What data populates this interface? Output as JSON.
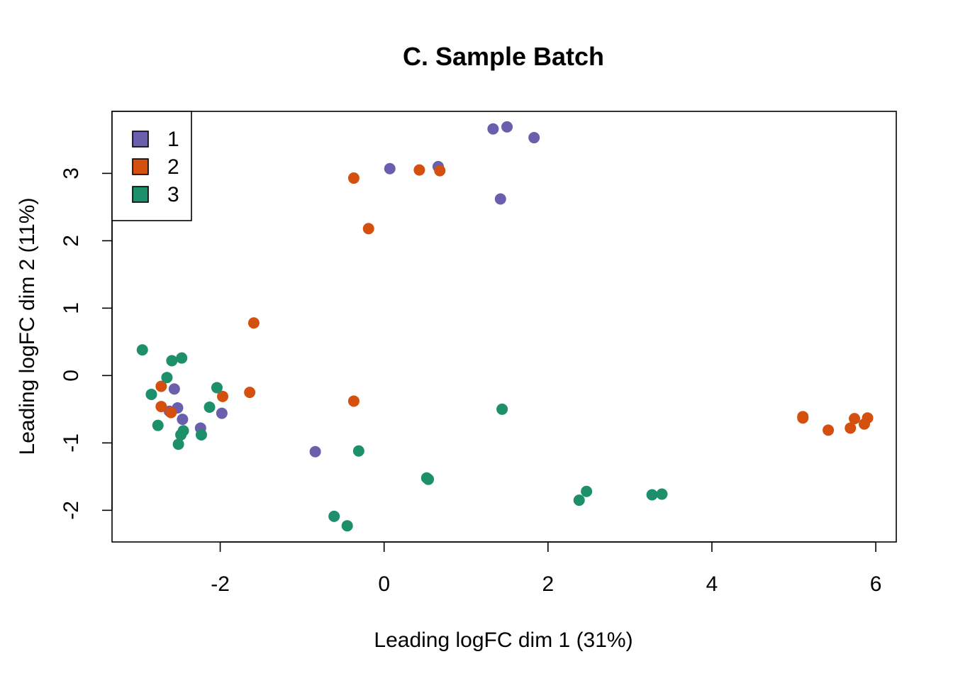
{
  "chart_data": {
    "type": "scatter",
    "title": "C. Sample Batch",
    "xlabel": "Leading logFC dim 1 (31%)",
    "ylabel": "Leading logFC dim 2 (11%)",
    "xlim": [
      -3.32,
      6.25
    ],
    "ylim": [
      -2.47,
      3.92
    ],
    "xticks": [
      "-2",
      "0",
      "2",
      "4",
      "6"
    ],
    "yticks": [
      "-2",
      "-1",
      "0",
      "1",
      "2",
      "3"
    ],
    "grid": false,
    "legend_position": "top-left",
    "series": [
      {
        "name": "1",
        "color": "#6a5fad",
        "points": [
          [
            1.33,
            3.66
          ],
          [
            1.5,
            3.69
          ],
          [
            1.83,
            3.53
          ],
          [
            0.07,
            3.07
          ],
          [
            0.66,
            3.1
          ],
          [
            1.42,
            2.62
          ],
          [
            -2.56,
            -0.2
          ],
          [
            -2.52,
            -0.48
          ],
          [
            -2.46,
            -0.65
          ],
          [
            -2.24,
            -0.78
          ],
          [
            -1.98,
            -0.56
          ],
          [
            -0.84,
            -1.13
          ],
          [
            -2.62,
            -0.53
          ]
        ]
      },
      {
        "name": "2",
        "color": "#d4500f",
        "points": [
          [
            -0.37,
            2.93
          ],
          [
            0.43,
            3.05
          ],
          [
            0.68,
            3.04
          ],
          [
            -0.19,
            2.18
          ],
          [
            -1.59,
            0.78
          ],
          [
            -1.64,
            -0.25
          ],
          [
            -1.97,
            -0.31
          ],
          [
            -0.37,
            -0.38
          ],
          [
            -2.72,
            -0.16
          ],
          [
            -2.72,
            -0.46
          ],
          [
            -2.6,
            -0.55
          ],
          [
            5.11,
            -0.61
          ],
          [
            5.11,
            -0.63
          ],
          [
            5.42,
            -0.81
          ],
          [
            5.69,
            -0.78
          ],
          [
            5.74,
            -0.64
          ],
          [
            5.86,
            -0.72
          ],
          [
            5.9,
            -0.63
          ]
        ]
      },
      {
        "name": "3",
        "color": "#1d8f6a",
        "points": [
          [
            -2.95,
            0.38
          ],
          [
            -2.59,
            0.22
          ],
          [
            -2.47,
            0.26
          ],
          [
            -2.65,
            -0.03
          ],
          [
            -2.84,
            -0.28
          ],
          [
            -2.04,
            -0.18
          ],
          [
            -2.13,
            -0.47
          ],
          [
            -2.76,
            -0.74
          ],
          [
            -2.45,
            -0.82
          ],
          [
            -2.48,
            -0.88
          ],
          [
            -2.51,
            -1.02
          ],
          [
            -2.23,
            -0.88
          ],
          [
            -0.31,
            -1.12
          ],
          [
            1.44,
            -0.5
          ],
          [
            0.52,
            -1.52
          ],
          [
            0.54,
            -1.54
          ],
          [
            -0.61,
            -2.09
          ],
          [
            -0.45,
            -2.23
          ],
          [
            2.38,
            -1.85
          ],
          [
            2.47,
            -1.72
          ],
          [
            3.27,
            -1.77
          ],
          [
            3.39,
            -1.76
          ]
        ]
      }
    ]
  }
}
